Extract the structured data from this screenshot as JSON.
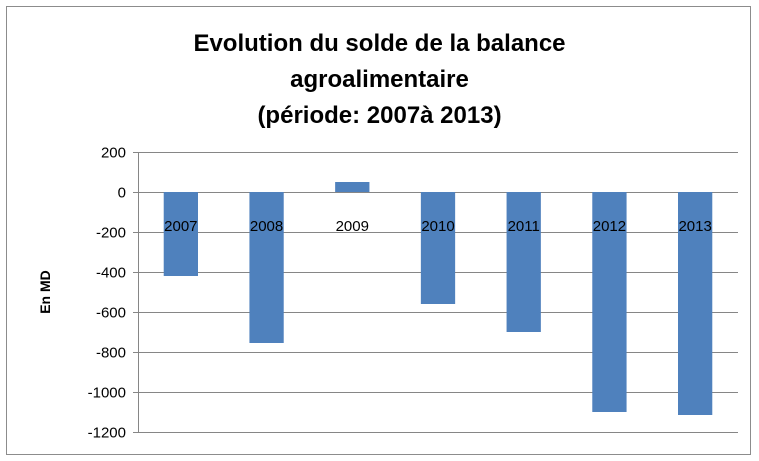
{
  "chart_data": {
    "type": "bar",
    "title_lines": [
      "Evolution du solde de la balance",
      "agroalimentaire",
      "(période: 2007à 2013)"
    ],
    "ylabel": "En MD",
    "xlabel": "",
    "categories": [
      "2007",
      "2008",
      "2009",
      "2010",
      "2011",
      "2012",
      "2013"
    ],
    "values": [
      -420,
      -755,
      50,
      -560,
      -700,
      -1100,
      -1115
    ],
    "ylim": [
      -1200,
      200
    ],
    "yticks": [
      200,
      0,
      -200,
      -400,
      -600,
      -800,
      -1000,
      -1200
    ],
    "grid": true,
    "legend": "none",
    "bar_color": "#4f81bd"
  }
}
